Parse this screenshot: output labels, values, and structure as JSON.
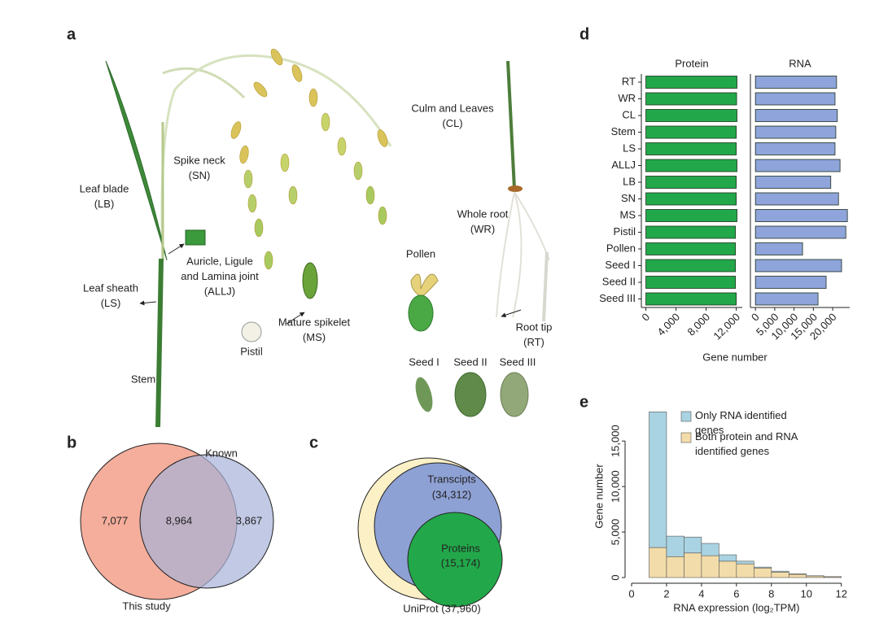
{
  "panel_a": {
    "label": "a",
    "annotations": [
      {
        "lines": [
          "Leaf blade",
          "(LB)"
        ]
      },
      {
        "lines": [
          "Spike neck",
          "(SN)"
        ]
      },
      {
        "lines": [
          "Auricle, Ligule",
          "and Lamina joint",
          "(ALLJ)"
        ]
      },
      {
        "lines": [
          "Leaf sheath",
          "(LS)"
        ]
      },
      {
        "lines": [
          "Stem"
        ]
      },
      {
        "lines": [
          "Pistil"
        ]
      },
      {
        "lines": [
          "Mature spikelet",
          "(MS)"
        ]
      },
      {
        "lines": [
          "Pollen"
        ]
      },
      {
        "lines": [
          "Culm and Leaves",
          "(CL)"
        ]
      },
      {
        "lines": [
          "Whole root",
          "(WR)"
        ]
      },
      {
        "lines": [
          "Root tip",
          "(RT)"
        ]
      },
      {
        "lines": [
          "Seed I"
        ]
      },
      {
        "lines": [
          "Seed II"
        ]
      },
      {
        "lines": [
          "Seed III"
        ]
      }
    ]
  },
  "panel_b": {
    "label": "b",
    "set_left": "This study",
    "set_right": "Known",
    "left_only": "7,077",
    "overlap": "8,964",
    "right_only": "3,867"
  },
  "panel_c": {
    "label": "c",
    "outer": "UniProt (37,960)",
    "middle": [
      "Transcipts",
      "(34,312)"
    ],
    "inner": [
      "Proteins",
      "(15,174)"
    ]
  },
  "panel_d": {
    "label": "d",
    "x_label": "Gene number"
  },
  "panel_e": {
    "label": "e"
  },
  "chart_data": [
    {
      "type": "hbar",
      "title": "Protein",
      "categories": [
        "RT",
        "WR",
        "CL",
        "Stem",
        "LS",
        "ALLJ",
        "LB",
        "SN",
        "MS",
        "Pistil",
        "Pollen",
        "Seed I",
        "Seed II",
        "Seed III"
      ],
      "values": [
        12100,
        12050,
        12100,
        12000,
        12000,
        12100,
        12000,
        12000,
        12100,
        11900,
        11900,
        11900,
        11900,
        12000
      ],
      "color": "#22a84a",
      "xlim": [
        -600,
        12800
      ],
      "xticks": [
        0,
        {
          "value": 4000,
          "label": "4,000"
        },
        {
          "value": 8000,
          "label": "8,000"
        },
        {
          "value": 12000,
          "label": "12,000"
        }
      ]
    },
    {
      "type": "hbar",
      "title": "RNA",
      "values": [
        21000,
        20600,
        21200,
        20800,
        20600,
        21900,
        19500,
        21500,
        23800,
        23400,
        12200,
        22300,
        18300,
        16200
      ],
      "color": "#8ea4da",
      "xlim": [
        -1300,
        24400
      ],
      "xticks": [
        0,
        {
          "value": 5000,
          "label": "5,000"
        },
        {
          "value": 10000,
          "label": "10,000"
        },
        {
          "value": 15000,
          "label": "15,000"
        },
        {
          "value": 20000,
          "label": "20,000"
        }
      ]
    },
    {
      "type": "histogram",
      "xlabel": "RNA expression (log₂TPM)",
      "ylabel": "Gene number",
      "bins": [
        1,
        2,
        3,
        4,
        5,
        6,
        7,
        8,
        9,
        10,
        11,
        12
      ],
      "series": [
        {
          "name": "Only RNA identified genes",
          "color": "#a9d3e2",
          "values": [
            14900,
            2250,
            1750,
            1350,
            700,
            300,
            100,
            100,
            50,
            20,
            10
          ]
        },
        {
          "name": "Both protein and RNA identified genes",
          "color": "#f2dca9",
          "values": [
            3300,
            2300,
            2700,
            2400,
            1800,
            1500,
            1050,
            600,
            350,
            180,
            90
          ]
        }
      ],
      "xlim": [
        0,
        12.2
      ],
      "ylim": [
        0,
        18500
      ],
      "xticks": [
        0,
        2,
        4,
        6,
        8,
        10,
        12
      ],
      "yticks": [
        0,
        {
          "value": 5000,
          "label": "5,000"
        },
        {
          "value": 10000,
          "label": "10,000"
        },
        {
          "value": 15000,
          "label": "15,000"
        }
      ],
      "legend": "upper right"
    }
  ]
}
